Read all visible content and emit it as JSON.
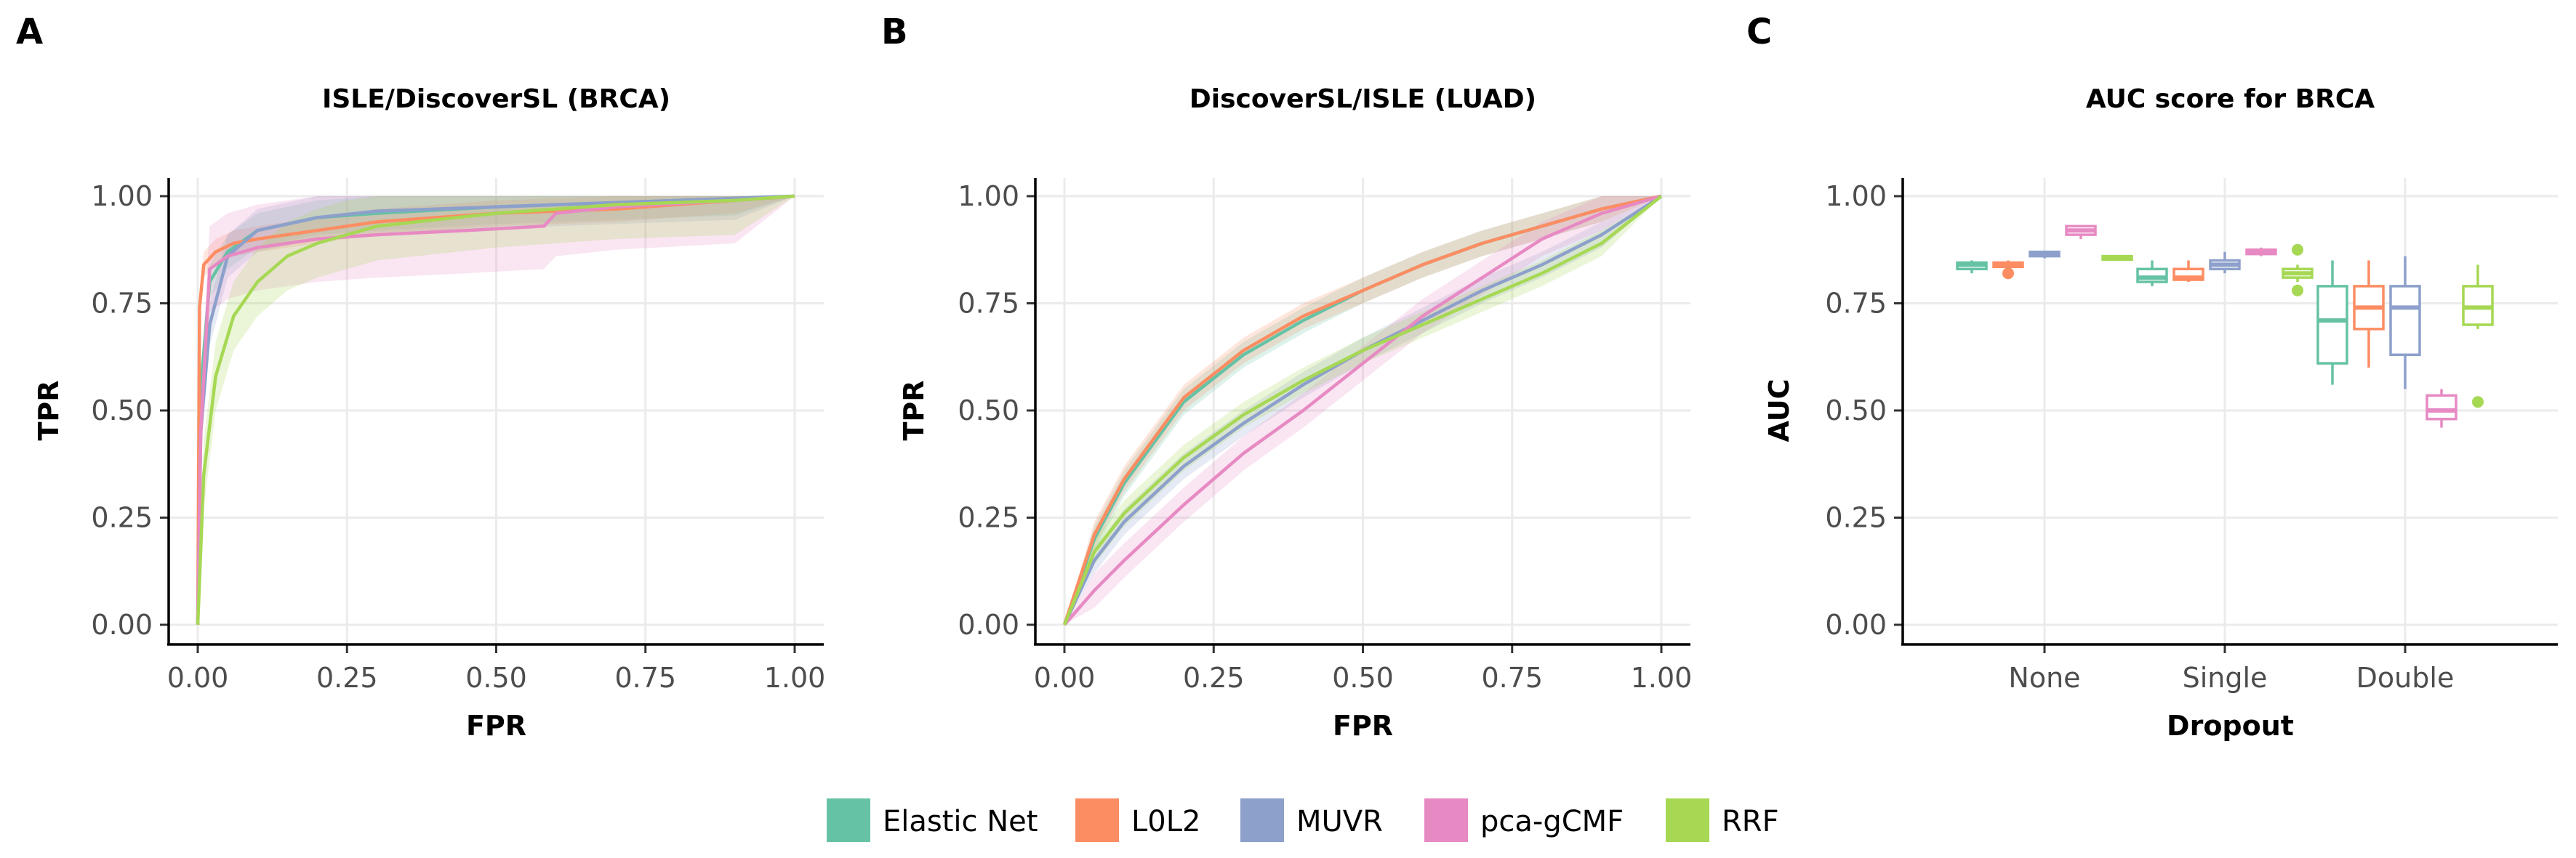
{
  "colors": {
    "Elastic Net": "#66c2a5",
    "L0L2": "#fc8d62",
    "MUVR": "#8da0cb",
    "pca-gCMF": "#e78ac3",
    "RRF": "#a6d854"
  },
  "legend": [
    "Elastic Net",
    "L0L2",
    "MUVR",
    "pca-gCMF",
    "RRF"
  ],
  "chart_data": [
    {
      "panel": "A",
      "type": "line",
      "title": "ISLE/DiscoverSL (BRCA)",
      "xlabel": "FPR",
      "ylabel": "TPR",
      "xlim": [
        0,
        1
      ],
      "ylim": [
        0,
        1
      ],
      "xticks": [
        "0.00",
        "0.25",
        "0.50",
        "0.75",
        "1.00"
      ],
      "yticks": [
        "0.00",
        "0.25",
        "0.50",
        "0.75",
        "1.00"
      ],
      "grid": true,
      "series": [
        {
          "name": "Elastic Net",
          "x": [
            0,
            0.005,
            0.02,
            0.05,
            0.1,
            0.2,
            0.3,
            0.5,
            0.7,
            0.9,
            1.0
          ],
          "y": [
            0,
            0.55,
            0.8,
            0.87,
            0.92,
            0.95,
            0.96,
            0.975,
            0.985,
            0.995,
            1.0
          ],
          "band": 0.04
        },
        {
          "name": "L0L2",
          "x": [
            0,
            0.003,
            0.01,
            0.03,
            0.06,
            0.1,
            0.2,
            0.3,
            0.5,
            0.7,
            0.9,
            1.0
          ],
          "y": [
            0,
            0.74,
            0.84,
            0.87,
            0.89,
            0.9,
            0.92,
            0.94,
            0.96,
            0.97,
            0.99,
            1.0
          ],
          "band": 0.03
        },
        {
          "name": "MUVR",
          "x": [
            0,
            0.005,
            0.02,
            0.05,
            0.1,
            0.2,
            0.3,
            0.5,
            0.7,
            0.9,
            1.0
          ],
          "y": [
            0,
            0.45,
            0.7,
            0.86,
            0.92,
            0.95,
            0.965,
            0.975,
            0.985,
            0.995,
            1.0
          ],
          "band": 0.05
        },
        {
          "name": "pca-gCMF",
          "x": [
            0,
            0.005,
            0.02,
            0.05,
            0.1,
            0.2,
            0.3,
            0.45,
            0.58,
            0.6,
            0.7,
            0.9,
            1.0
          ],
          "y": [
            0,
            0.45,
            0.83,
            0.86,
            0.88,
            0.9,
            0.91,
            0.92,
            0.93,
            0.96,
            0.975,
            0.99,
            1.0
          ],
          "band": 0.1
        },
        {
          "name": "RRF",
          "x": [
            0,
            0.01,
            0.03,
            0.06,
            0.1,
            0.15,
            0.2,
            0.25,
            0.3,
            0.5,
            0.7,
            0.9,
            1.0
          ],
          "y": [
            0,
            0.35,
            0.58,
            0.72,
            0.8,
            0.86,
            0.89,
            0.91,
            0.93,
            0.96,
            0.98,
            0.99,
            1.0
          ],
          "band": 0.08
        }
      ]
    },
    {
      "panel": "B",
      "type": "line",
      "title": "DiscoverSL/ISLE (LUAD)",
      "xlabel": "FPR",
      "ylabel": "TPR",
      "xlim": [
        0,
        1
      ],
      "ylim": [
        0,
        1
      ],
      "xticks": [
        "0.00",
        "0.25",
        "0.50",
        "0.75",
        "1.00"
      ],
      "yticks": [
        "0.00",
        "0.25",
        "0.50",
        "0.75",
        "1.00"
      ],
      "grid": true,
      "series": [
        {
          "name": "Elastic Net",
          "x": [
            0,
            0.05,
            0.1,
            0.2,
            0.3,
            0.4,
            0.5,
            0.6,
            0.7,
            0.8,
            0.9,
            1.0
          ],
          "y": [
            0,
            0.2,
            0.33,
            0.52,
            0.63,
            0.71,
            0.78,
            0.84,
            0.89,
            0.93,
            0.97,
            1.0
          ],
          "band": 0.03
        },
        {
          "name": "L0L2",
          "x": [
            0,
            0.05,
            0.1,
            0.2,
            0.3,
            0.4,
            0.5,
            0.6,
            0.7,
            0.8,
            0.9,
            1.0
          ],
          "y": [
            0,
            0.21,
            0.34,
            0.53,
            0.64,
            0.72,
            0.78,
            0.84,
            0.89,
            0.93,
            0.97,
            1.0
          ],
          "band": 0.03
        },
        {
          "name": "MUVR",
          "x": [
            0,
            0.05,
            0.1,
            0.2,
            0.3,
            0.4,
            0.5,
            0.6,
            0.7,
            0.8,
            0.9,
            1.0
          ],
          "y": [
            0,
            0.15,
            0.24,
            0.37,
            0.47,
            0.56,
            0.64,
            0.71,
            0.78,
            0.84,
            0.91,
            1.0
          ],
          "band": 0.03
        },
        {
          "name": "pca-gCMF",
          "x": [
            0,
            0.05,
            0.1,
            0.2,
            0.3,
            0.4,
            0.5,
            0.6,
            0.7,
            0.8,
            0.9,
            1.0
          ],
          "y": [
            0,
            0.08,
            0.15,
            0.28,
            0.4,
            0.5,
            0.61,
            0.72,
            0.81,
            0.9,
            0.96,
            1.0
          ],
          "band": 0.04
        },
        {
          "name": "RRF",
          "x": [
            0,
            0.05,
            0.1,
            0.2,
            0.3,
            0.4,
            0.5,
            0.6,
            0.7,
            0.8,
            0.9,
            1.0
          ],
          "y": [
            0,
            0.17,
            0.26,
            0.39,
            0.49,
            0.57,
            0.64,
            0.7,
            0.76,
            0.82,
            0.89,
            1.0
          ],
          "band": 0.03
        }
      ]
    },
    {
      "panel": "C",
      "type": "box",
      "title": "AUC score for BRCA",
      "xlabel": "Dropout",
      "ylabel": "AUC",
      "ylim": [
        0,
        1
      ],
      "yticks": [
        "0.00",
        "0.25",
        "0.50",
        "0.75",
        "1.00"
      ],
      "categories": [
        "None",
        "Single",
        "Double"
      ],
      "grid": true,
      "groups": [
        {
          "category": "None",
          "boxes": [
            {
              "name": "Elastic Net",
              "min": 0.82,
              "q1": 0.83,
              "median": 0.84,
              "q3": 0.845,
              "max": 0.85,
              "outliers": []
            },
            {
              "name": "L0L2",
              "min": 0.83,
              "q1": 0.835,
              "median": 0.84,
              "q3": 0.845,
              "max": 0.85,
              "outliers": [
                0.82
              ]
            },
            {
              "name": "MUVR",
              "min": 0.855,
              "q1": 0.86,
              "median": 0.865,
              "q3": 0.87,
              "max": 0.87,
              "outliers": []
            },
            {
              "name": "pca-gCMF",
              "min": 0.9,
              "q1": 0.91,
              "median": 0.92,
              "q3": 0.93,
              "max": 0.93,
              "outliers": []
            },
            {
              "name": "RRF",
              "min": 0.85,
              "q1": 0.852,
              "median": 0.855,
              "q3": 0.86,
              "max": 0.862,
              "outliers": []
            }
          ]
        },
        {
          "category": "Single",
          "boxes": [
            {
              "name": "Elastic Net",
              "min": 0.79,
              "q1": 0.8,
              "median": 0.81,
              "q3": 0.83,
              "max": 0.85,
              "outliers": []
            },
            {
              "name": "L0L2",
              "min": 0.8,
              "q1": 0.805,
              "median": 0.81,
              "q3": 0.83,
              "max": 0.85,
              "outliers": []
            },
            {
              "name": "MUVR",
              "min": 0.82,
              "q1": 0.83,
              "median": 0.84,
              "q3": 0.85,
              "max": 0.87,
              "outliers": []
            },
            {
              "name": "pca-gCMF",
              "min": 0.86,
              "q1": 0.865,
              "median": 0.87,
              "q3": 0.875,
              "max": 0.88,
              "outliers": []
            },
            {
              "name": "RRF",
              "min": 0.8,
              "q1": 0.81,
              "median": 0.82,
              "q3": 0.83,
              "max": 0.84,
              "outliers": [
                0.78,
                0.875
              ]
            }
          ]
        },
        {
          "category": "Double",
          "boxes": [
            {
              "name": "Elastic Net",
              "min": 0.56,
              "q1": 0.61,
              "median": 0.71,
              "q3": 0.79,
              "max": 0.85,
              "outliers": []
            },
            {
              "name": "L0L2",
              "min": 0.6,
              "q1": 0.69,
              "median": 0.74,
              "q3": 0.79,
              "max": 0.85,
              "outliers": []
            },
            {
              "name": "MUVR",
              "min": 0.55,
              "q1": 0.63,
              "median": 0.74,
              "q3": 0.79,
              "max": 0.86,
              "outliers": []
            },
            {
              "name": "pca-gCMF",
              "min": 0.46,
              "q1": 0.48,
              "median": 0.5,
              "q3": 0.535,
              "max": 0.55,
              "outliers": []
            },
            {
              "name": "RRF",
              "min": 0.69,
              "q1": 0.7,
              "median": 0.74,
              "q3": 0.79,
              "max": 0.84,
              "outliers": [
                0.52
              ]
            }
          ]
        }
      ]
    }
  ]
}
